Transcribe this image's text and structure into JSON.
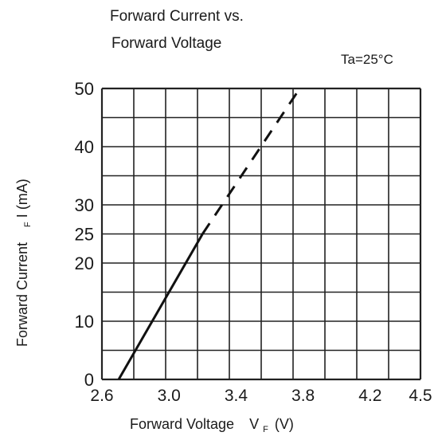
{
  "chart_data": {
    "type": "line",
    "title_line1": "Forward Current vs.",
    "title_line2": "Forward Voltage",
    "condition": "Ta=25°C",
    "xlabel": "Forward Voltage",
    "xlabel_symbol": "V",
    "xlabel_subscript": "F",
    "xlabel_unit": "(V)",
    "ylabel": "Forward Current",
    "ylabel_subscript": "F",
    "ylabel_symbol": "I (mA)",
    "x_ticks": [
      {
        "value": 2.6,
        "label": "2.6"
      },
      {
        "value": 3.0,
        "label": "3.0"
      },
      {
        "value": 3.4,
        "label": "3.4"
      },
      {
        "value": 3.8,
        "label": "3.8"
      },
      {
        "value": 4.2,
        "label": "4.2"
      },
      {
        "value": 4.5,
        "label": "4.5"
      }
    ],
    "y_ticks": [
      {
        "value": 0,
        "label": "0"
      },
      {
        "value": 10,
        "label": "10"
      },
      {
        "value": 20,
        "label": "20"
      },
      {
        "value": 25,
        "label": "25"
      },
      {
        "value": 30,
        "label": "30"
      },
      {
        "value": 40,
        "label": "40"
      },
      {
        "value": 50,
        "label": "50"
      }
    ],
    "xlim": [
      2.6,
      4.5
    ],
    "ylim": [
      0,
      50
    ],
    "grid": true,
    "series": [
      {
        "style": "solid",
        "x": [
          2.7,
          3.2
        ],
        "y": [
          0,
          25
        ]
      },
      {
        "style": "dashed",
        "x": [
          3.2,
          3.78
        ],
        "y": [
          25,
          50
        ]
      }
    ]
  }
}
